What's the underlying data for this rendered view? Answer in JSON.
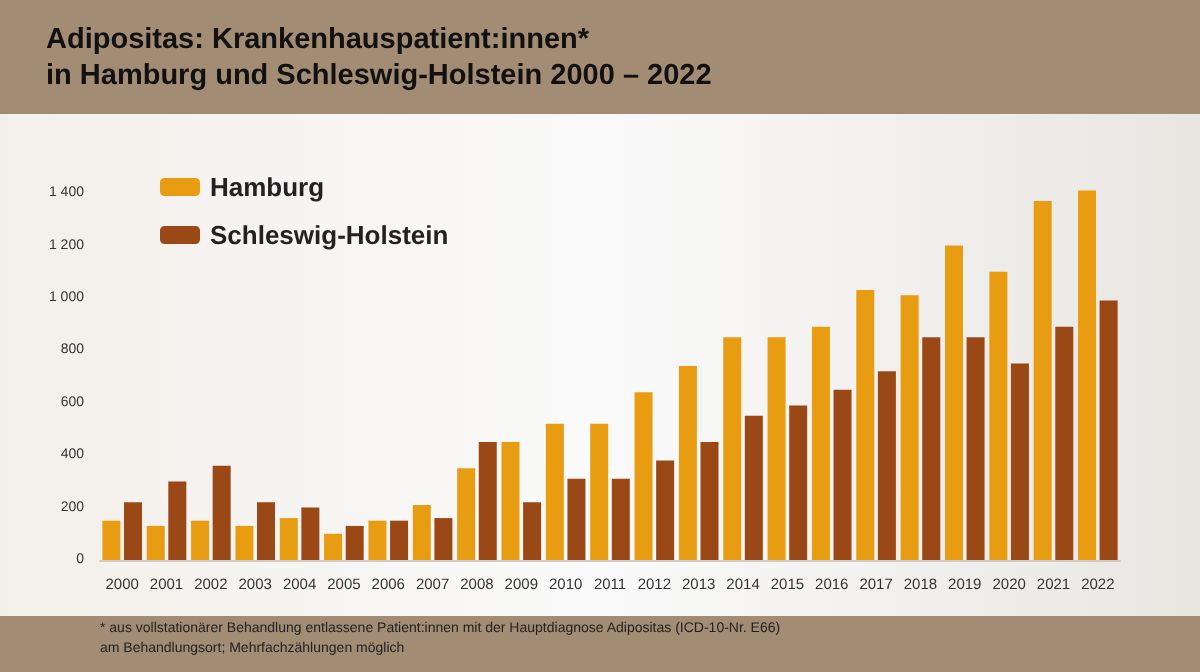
{
  "chart_data": {
    "type": "bar",
    "title": "Adipositas: Krankenhauspatient:innen*\nin Hamburg und Schleswig-Holstein 2000 – 2022",
    "categories": [
      "2000",
      "2001",
      "2002",
      "2003",
      "2004",
      "2005",
      "2006",
      "2007",
      "2008",
      "2009",
      "2010",
      "2011",
      "2012",
      "2013",
      "2014",
      "2015",
      "2016",
      "2017",
      "2018",
      "2019",
      "2020",
      "2021",
      "2022"
    ],
    "series": [
      {
        "name": "Hamburg",
        "color": "#e89c12",
        "values": [
          150,
          130,
          150,
          130,
          160,
          100,
          150,
          210,
          350,
          450,
          520,
          520,
          640,
          740,
          850,
          850,
          890,
          1030,
          1010,
          1200,
          1100,
          1370,
          1410
        ]
      },
      {
        "name": "Schleswig-Holstein",
        "color": "#9a4816",
        "values": [
          220,
          300,
          360,
          220,
          200,
          130,
          150,
          160,
          450,
          220,
          310,
          310,
          380,
          450,
          550,
          590,
          650,
          720,
          850,
          850,
          750,
          890,
          990
        ]
      }
    ],
    "ylim": [
      0,
      1450
    ],
    "yticks": [
      {
        "value": 0,
        "label": "0"
      },
      {
        "value": 200,
        "label": "200"
      },
      {
        "value": 400,
        "label": "400"
      },
      {
        "value": 600,
        "label": "600"
      },
      {
        "value": 800,
        "label": "800"
      },
      {
        "value": 1000,
        "label": "1 000"
      },
      {
        "value": 1200,
        "label": "1 200"
      },
      {
        "value": 1400,
        "label": "1 400"
      }
    ],
    "grid": false,
    "legend": "top left",
    "annotations": [
      "* aus vollstationärer Behandlung entlassene Patient:innen mit der Hauptdiagnose Adipositas (ICD-10-Nr. E66) am Behandlungsort; Mehrfachzählungen möglich"
    ]
  }
}
